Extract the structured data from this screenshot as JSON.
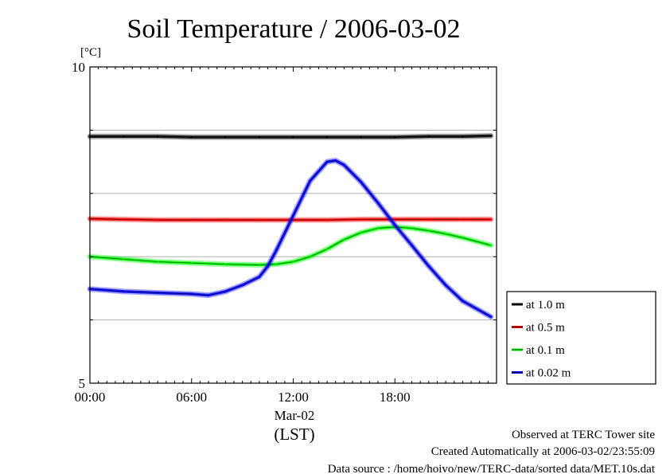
{
  "chart_data": {
    "type": "line",
    "title": "Soil Temperature / 2006-03-02",
    "ylabel": "[°C]",
    "xlabel": "(LST)",
    "ylim": [
      5,
      10
    ],
    "yticks": [
      5,
      10
    ],
    "y_grid": [
      6,
      7,
      8,
      9
    ],
    "xlim": [
      "00:00",
      "23:59"
    ],
    "xticks": [
      "00:00",
      "06:00",
      "12:00",
      "18:00"
    ],
    "x_date_label": "Mar-02",
    "grid": true,
    "legend": "right",
    "series": [
      {
        "name": "at 1.0 m",
        "color": "#000000",
        "x": [
          "00:00",
          "02:00",
          "04:00",
          "06:00",
          "08:00",
          "10:00",
          "12:00",
          "14:00",
          "16:00",
          "18:00",
          "20:00",
          "22:00",
          "23:40"
        ],
        "values": [
          8.9,
          8.9,
          8.9,
          8.89,
          8.89,
          8.89,
          8.89,
          8.89,
          8.89,
          8.89,
          8.9,
          8.9,
          8.91
        ]
      },
      {
        "name": "at 0.5 m",
        "color": "#ff0000",
        "x": [
          "00:00",
          "02:00",
          "04:00",
          "06:00",
          "08:00",
          "10:00",
          "12:00",
          "14:00",
          "16:00",
          "18:00",
          "20:00",
          "22:00",
          "23:40"
        ],
        "values": [
          7.6,
          7.59,
          7.58,
          7.58,
          7.58,
          7.58,
          7.58,
          7.58,
          7.59,
          7.59,
          7.59,
          7.59,
          7.59
        ]
      },
      {
        "name": "at 0.1 m",
        "color": "#00ff00",
        "x": [
          "00:00",
          "02:00",
          "04:00",
          "06:00",
          "08:00",
          "10:00",
          "11:00",
          "12:00",
          "13:00",
          "14:00",
          "15:00",
          "16:00",
          "17:00",
          "18:00",
          "19:00",
          "20:00",
          "21:00",
          "22:00",
          "23:40"
        ],
        "values": [
          7.0,
          6.96,
          6.92,
          6.9,
          6.88,
          6.87,
          6.88,
          6.92,
          7.0,
          7.12,
          7.27,
          7.38,
          7.45,
          7.47,
          7.45,
          7.41,
          7.36,
          7.3,
          7.18
        ]
      },
      {
        "name": "at 0.02 m",
        "color": "#0000ff",
        "x": [
          "00:00",
          "02:00",
          "04:00",
          "06:00",
          "07:00",
          "08:00",
          "09:00",
          "10:00",
          "10:30",
          "11:00",
          "12:00",
          "13:00",
          "14:00",
          "14:30",
          "15:00",
          "16:00",
          "17:00",
          "18:00",
          "19:00",
          "20:00",
          "21:00",
          "22:00",
          "23:40"
        ],
        "values": [
          6.49,
          6.45,
          6.43,
          6.41,
          6.39,
          6.45,
          6.55,
          6.68,
          6.85,
          7.1,
          7.65,
          8.2,
          8.5,
          8.52,
          8.45,
          8.18,
          7.85,
          7.5,
          7.18,
          6.85,
          6.55,
          6.3,
          6.05
        ]
      }
    ],
    "annotations": [
      "Observed at TERC Tower site",
      "Created Automatically at 2006-03-02/23:55:09",
      "Data source : /home/hoivo/new/TERC-data/sorted  data/MET.10s.dat"
    ]
  }
}
